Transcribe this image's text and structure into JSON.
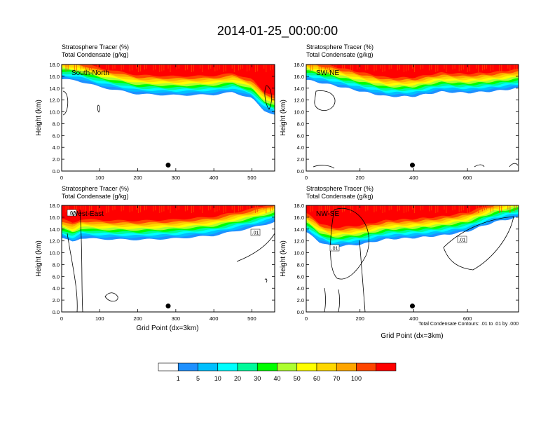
{
  "figure": {
    "title": "2014-01-25_00:00:00",
    "xlabel": "Grid Point (dx=3km)",
    "ylabel": "Height (km)",
    "contour_note": "Total Condensate Contours: .01 to .01 by .000",
    "subtitle_line1": "Stratosphere Tracer   (%)",
    "subtitle_line2": "Total Condensate   (g/kg)"
  },
  "colorbar": {
    "levels": [
      "1",
      "5",
      "10",
      "20",
      "30",
      "40",
      "50",
      "60",
      "70",
      "100"
    ],
    "colors": [
      "#ffffff",
      "#1e90ff",
      "#00bfff",
      "#00ffff",
      "#00fa9a",
      "#00ff00",
      "#adff2f",
      "#ffff00",
      "#ffd700",
      "#ffa500",
      "#ff4500",
      "#ff0000"
    ]
  },
  "chart_data": [
    {
      "type": "heatmap",
      "label": "South-North",
      "x_ticks": [
        0,
        100,
        200,
        300,
        400,
        500
      ],
      "xlim": [
        0,
        560
      ],
      "y_ticks": [
        "0.0",
        "2.0",
        "4.0",
        "6.0",
        "8.0",
        "10.0",
        "12.0",
        "14.0",
        "16.0",
        "18.0"
      ],
      "ylim": [
        0,
        18
      ],
      "marker": {
        "x": 280,
        "y": 1.0
      },
      "tracer_lower_boundary_km": [
        [
          0,
          15.5
        ],
        [
          40,
          15.3
        ],
        [
          100,
          14.2
        ],
        [
          200,
          13.0
        ],
        [
          300,
          12.8
        ],
        [
          400,
          12.9
        ],
        [
          450,
          13.3
        ],
        [
          500,
          12.3
        ],
        [
          530,
          10.3
        ],
        [
          560,
          9.5
        ]
      ],
      "contour_labels": []
    },
    {
      "type": "heatmap",
      "label": "SW-NE",
      "x_ticks": [
        0,
        200,
        400,
        600
      ],
      "xlim": [
        0,
        790
      ],
      "y_ticks": [
        "0.0",
        "2.0",
        "4.0",
        "6.0",
        "8.0",
        "10.0",
        "12.0",
        "14.0",
        "16.0",
        "18.0"
      ],
      "ylim": [
        0,
        18
      ],
      "marker": {
        "x": 395,
        "y": 1.0
      },
      "tracer_lower_boundary_km": [
        [
          0,
          15.4
        ],
        [
          100,
          14.5
        ],
        [
          200,
          13.5
        ],
        [
          300,
          12.6
        ],
        [
          400,
          12.6
        ],
        [
          500,
          13.4
        ],
        [
          600,
          13.2
        ],
        [
          700,
          13.5
        ],
        [
          790,
          14.0
        ]
      ],
      "contour_labels": []
    },
    {
      "type": "heatmap",
      "label": "West-East",
      "x_ticks": [
        0,
        100,
        200,
        300,
        400,
        500
      ],
      "xlim": [
        0,
        560
      ],
      "y_ticks": [
        "0.0",
        "2.0",
        "4.0",
        "6.0",
        "8.0",
        "10.0",
        "12.0",
        "14.0",
        "16.0",
        "18.0"
      ],
      "ylim": [
        0,
        18
      ],
      "marker": {
        "x": 280,
        "y": 1.0
      },
      "tracer_lower_boundary_km": [
        [
          0,
          12.5
        ],
        [
          30,
          11.8
        ],
        [
          50,
          12.5
        ],
        [
          100,
          12.3
        ],
        [
          200,
          12.2
        ],
        [
          300,
          12.4
        ],
        [
          400,
          12.9
        ],
        [
          500,
          14.2
        ],
        [
          560,
          15.2
        ]
      ],
      "contour_labels": [
        ".01",
        ".01"
      ]
    },
    {
      "type": "heatmap",
      "label": "NW-SE",
      "x_ticks": [
        0,
        200,
        400,
        600
      ],
      "xlim": [
        0,
        790
      ],
      "y_ticks": [
        "0.0",
        "2.0",
        "4.0",
        "6.0",
        "8.0",
        "10.0",
        "12.0",
        "14.0",
        "16.0",
        "18.0"
      ],
      "ylim": [
        0,
        18
      ],
      "marker": {
        "x": 395,
        "y": 1.0
      },
      "tracer_lower_boundary_km": [
        [
          0,
          13.5
        ],
        [
          50,
          11.8
        ],
        [
          100,
          11.0
        ],
        [
          150,
          11.2
        ],
        [
          200,
          11.4
        ],
        [
          300,
          12.3
        ],
        [
          400,
          12.5
        ],
        [
          500,
          12.9
        ],
        [
          600,
          13.6
        ],
        [
          700,
          15.2
        ],
        [
          790,
          16.0
        ]
      ],
      "contour_labels": [
        ".01",
        ".01"
      ]
    }
  ]
}
